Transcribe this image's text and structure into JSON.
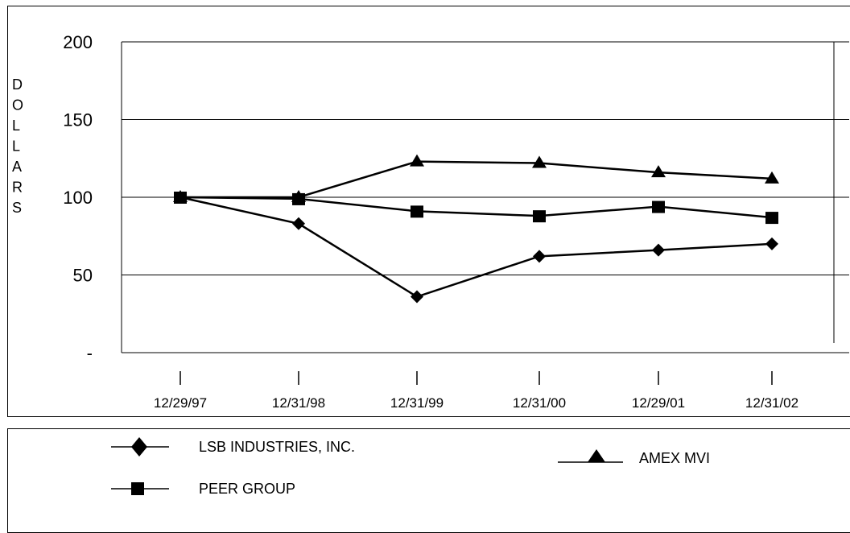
{
  "chart_data": {
    "type": "line",
    "title": "",
    "xlabel": "",
    "ylabel": "DOLLARS",
    "categories": [
      "12/29/97",
      "12/31/98",
      "12/31/99",
      "12/31/00",
      "12/29/01",
      "12/31/02"
    ],
    "yticks": [
      {
        "value": 200,
        "label": "200"
      },
      {
        "value": 150,
        "label": "150"
      },
      {
        "value": 100,
        "label": "100"
      },
      {
        "value": 50,
        "label": "50"
      },
      {
        "value": 0,
        "label": "-"
      }
    ],
    "ylim": [
      0,
      200
    ],
    "grid": true,
    "series": [
      {
        "name": "LSB INDUSTRIES, INC.",
        "marker": "diamond",
        "values": [
          100,
          83,
          36,
          62,
          66,
          70
        ]
      },
      {
        "name": "PEER GROUP",
        "marker": "square",
        "values": [
          100,
          99,
          91,
          88,
          94,
          87
        ]
      },
      {
        "name": "AMEX MVI",
        "marker": "triangle",
        "values": [
          100,
          100,
          123,
          122,
          116,
          112
        ]
      }
    ],
    "legend_placement": "bottom"
  }
}
